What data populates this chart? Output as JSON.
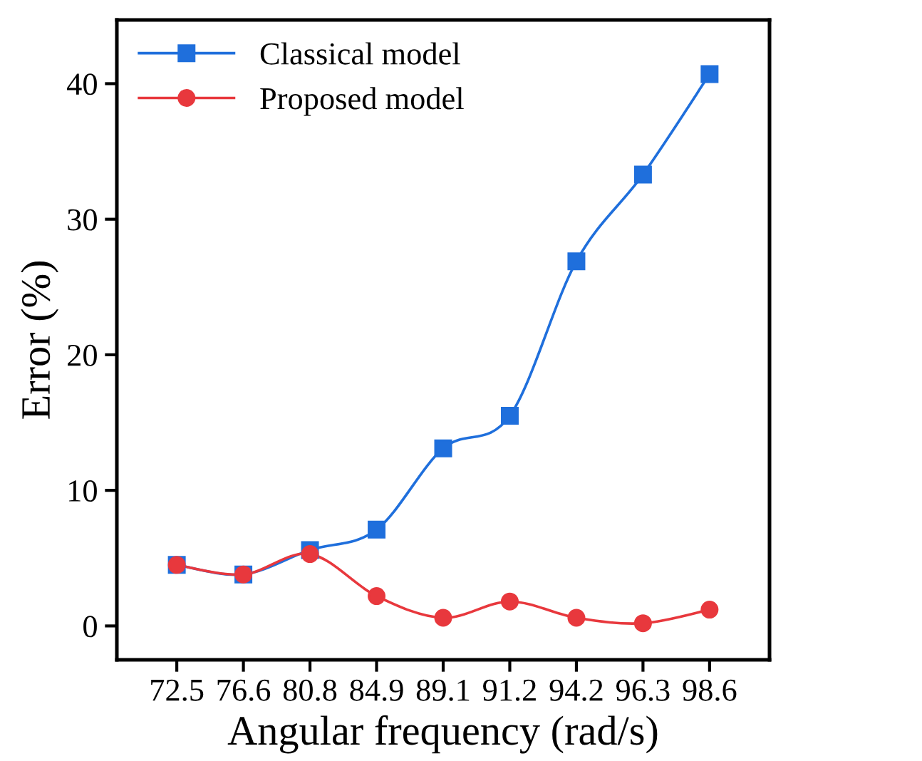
{
  "chart_data": {
    "type": "line",
    "xlabel": "Angular frequency (rad/s)",
    "ylabel": "Error (%)",
    "categories": [
      "72.5",
      "76.6",
      "80.8",
      "84.9",
      "89.1",
      "91.2",
      "94.2",
      "96.3",
      "98.6"
    ],
    "series": [
      {
        "name": "Classical model",
        "color": "#1f6fdc",
        "marker": "square",
        "values": [
          4.5,
          3.8,
          5.6,
          7.1,
          13.1,
          15.5,
          26.9,
          33.3,
          40.7
        ]
      },
      {
        "name": "Proposed model",
        "color": "#e8383d",
        "marker": "circle",
        "values": [
          4.5,
          3.8,
          5.3,
          2.2,
          0.6,
          1.8,
          0.6,
          0.2,
          1.2
        ]
      }
    ],
    "ylim": [
      -2.5,
      44.7
    ],
    "yticks": [
      0,
      10,
      20,
      30,
      40
    ],
    "grid": false,
    "legend": "top left",
    "line_style": "solid"
  }
}
